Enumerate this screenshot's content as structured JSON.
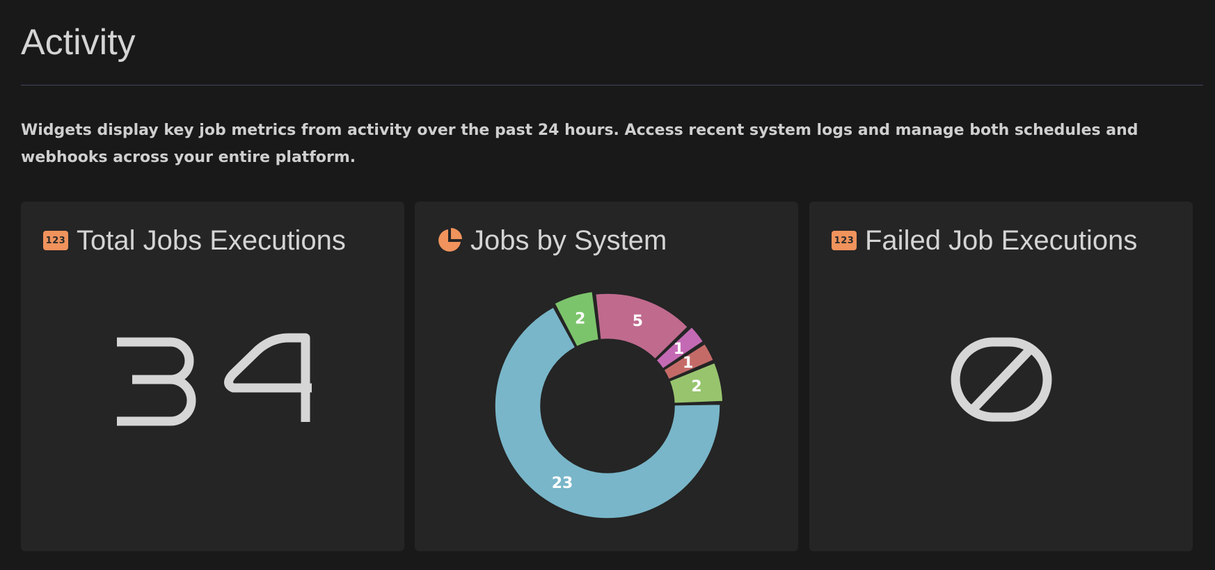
{
  "page": {
    "title": "Activity",
    "description": "Widgets display key job metrics from activity over the past 24 hours. Access recent system logs and manage both schedules and webhooks across your entire platform."
  },
  "colors": {
    "accent": "#f0935c",
    "background": "#191919",
    "card": "#252525",
    "text": "#d4d4d4"
  },
  "cards": {
    "total": {
      "title": "Total Jobs Executions",
      "icon": "number-123-icon",
      "badge": "123",
      "value": "34"
    },
    "by_system": {
      "title": "Jobs by System",
      "icon": "pie-chart-icon"
    },
    "failed": {
      "title": "Failed Job Executions",
      "icon": "number-123-icon",
      "badge": "123",
      "value": "0"
    }
  },
  "chart_data": {
    "type": "pie",
    "donut": true,
    "values": [
      2,
      5,
      1,
      1,
      2,
      23
    ],
    "colors": [
      "#7cc46c",
      "#c06a8e",
      "#c46ab4",
      "#c46b68",
      "#98c46e",
      "#79b6c9"
    ]
  }
}
